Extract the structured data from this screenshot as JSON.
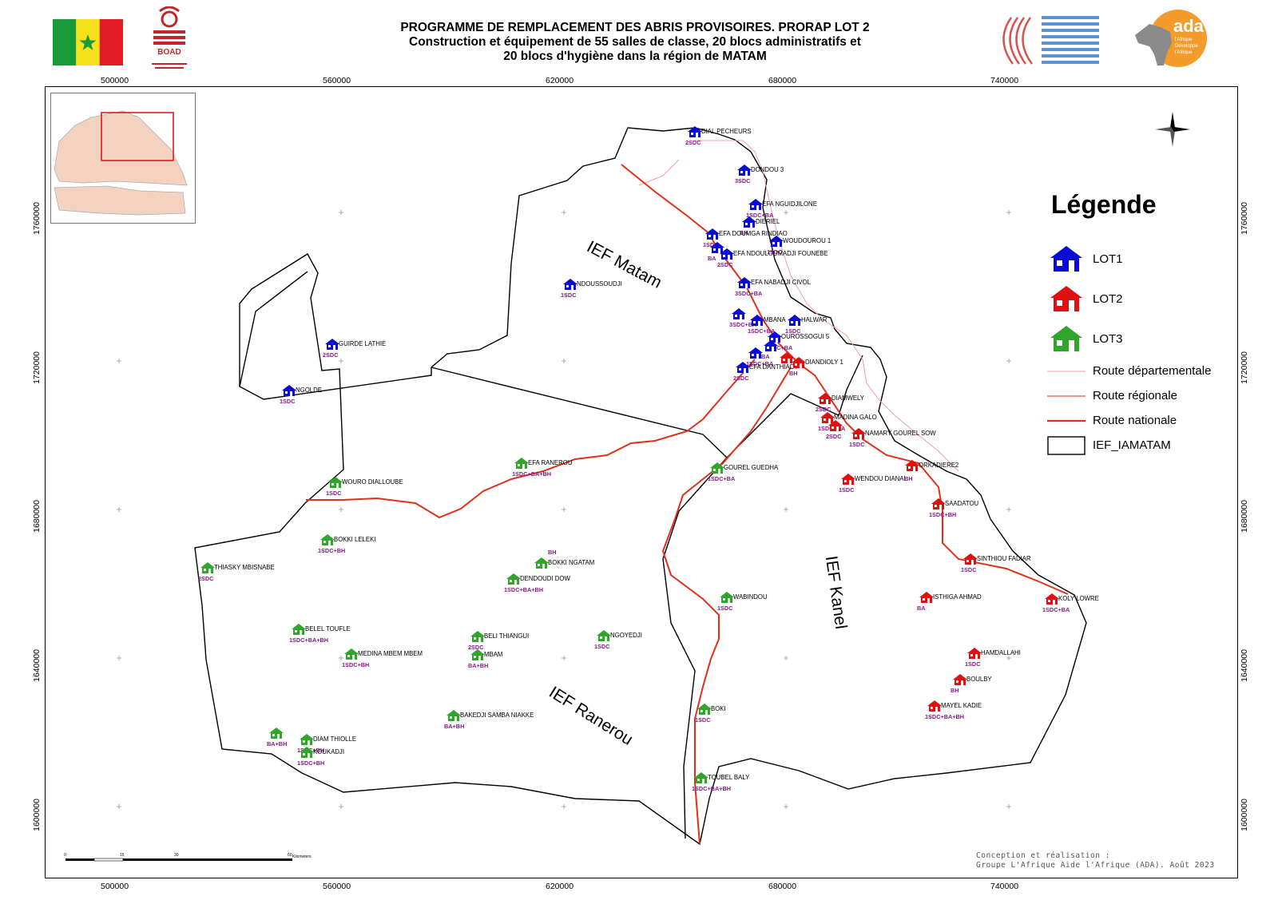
{
  "header": {
    "title_line1": "PROGRAMME DE REMPLACEMENT DES ABRIS PROVISOIRES. PRORAP LOT 2",
    "title_line2": "Construction et équipement de 55 salles de classe, 20 blocs administratifs et",
    "title_line3": "20 blocs d'hygiène dans la région de MATAM",
    "boad_logo_text": "BOAD",
    "ada_logo_text": "ada",
    "ada_logo_sub": "l'Afrique Développe l'Afrique"
  },
  "coords": {
    "x_labels": [
      "500000",
      "560000",
      "620000",
      "680000",
      "740000"
    ],
    "y_labels": [
      "1760000",
      "1720000",
      "1680000",
      "1640000",
      "1600000"
    ]
  },
  "regions": {
    "matam": "IEF Matam",
    "kanel": "IEF Kanel",
    "ranerou": "IEF Ranerou"
  },
  "legend": {
    "title": "Légende",
    "lot1": "LOT1",
    "lot2": "LOT2",
    "lot3": "LOT3",
    "route_dep": "Route départementale",
    "route_reg": "Route régionale",
    "route_nat": "Route nationale",
    "ief": "IEF_IAMATAM",
    "colors": {
      "lot1": "#0a0ad8",
      "lot2": "#e01010",
      "lot3": "#2fa52a",
      "route_dep": "#f0a0a0",
      "route_reg": "#e87060",
      "route_nat": "#e0301a"
    }
  },
  "sites": [
    {
      "name": "DIAL PECHEURS",
      "code": "2SDC",
      "lot": 1
    },
    {
      "name": "DONDOU 3",
      "code": "3SDC",
      "lot": 1
    },
    {
      "name": "EFA NGUIDJILONE",
      "code": "1SDC+BA",
      "lot": 1
    },
    {
      "name": "DIERIEL",
      "code": "BH",
      "lot": 1
    },
    {
      "name": "EFA DOUMGA RINDIAO",
      "code": "1SDC",
      "lot": 1
    },
    {
      "name": "WOUDOUROU 1",
      "code": "1SDC",
      "lot": 1
    },
    {
      "name": "EFA NDOULOUMADJI FOUNEBE",
      "code": "2SDC",
      "lot": 1
    },
    {
      "name": "",
      "code": "BA",
      "lot": 1
    },
    {
      "name": "NDOUSSOUDJI",
      "code": "1SDC",
      "lot": 1
    },
    {
      "name": "EFA NABADJI CIVOL",
      "code": "3SDC+BA",
      "lot": 1
    },
    {
      "name": "",
      "code": "3SDC+BA",
      "lot": 1
    },
    {
      "name": "MBANA",
      "code": "1SDC+BA",
      "lot": 1
    },
    {
      "name": "HALWAR",
      "code": "1SDC",
      "lot": 1
    },
    {
      "name": "OUROSSOGUI 5",
      "code": "1SDC+BA",
      "lot": 1
    },
    {
      "name": "",
      "code": "1SDC+BA",
      "lot": 1
    },
    {
      "name": "EFA DANTHIADY",
      "code": "2SDC",
      "lot": 1
    },
    {
      "name": "GUIRDE LATHIE",
      "code": "2SDC",
      "lot": 1
    },
    {
      "name": "NGOLDE",
      "code": "1SDC",
      "lot": 1
    },
    {
      "name": "",
      "code": "BA",
      "lot": 1
    },
    {
      "name": "DIANDIOLY 1",
      "code": "BH",
      "lot": 2
    },
    {
      "name": "",
      "code": "",
      "lot": 2
    },
    {
      "name": "DIAMWELY",
      "code": "2SDC",
      "lot": 2
    },
    {
      "name": "MADINA GALO",
      "code": "1SDC+BA",
      "lot": 2
    },
    {
      "name": "",
      "code": "2SDC",
      "lot": 2
    },
    {
      "name": "NAMARY GOUREL SOW",
      "code": "1SDC",
      "lot": 2
    },
    {
      "name": "ORKADIERE2",
      "code": "",
      "lot": 2
    },
    {
      "name": "WENDOU DIANAL",
      "code": "1SDC",
      "lot": 2,
      "extra": "BH"
    },
    {
      "name": "SAADATOU",
      "code": "1SDC+BH",
      "lot": 2
    },
    {
      "name": "SINTHIOU FADIAR",
      "code": "1SDC",
      "lot": 2
    },
    {
      "name": "ISTHIGA AHMAD",
      "code": "BA",
      "lot": 2
    },
    {
      "name": "KOLY LOWRE",
      "code": "1SDC+BA",
      "lot": 2
    },
    {
      "name": "HAMDALLAHI",
      "code": "1SDC",
      "lot": 2
    },
    {
      "name": "BOULBY",
      "code": "BH",
      "lot": 2
    },
    {
      "name": "MAYEL KADIE",
      "code": "1SDC+BA+BH",
      "lot": 2
    },
    {
      "name": "EFA RANEROU",
      "code": "1SDC+BA+BH",
      "lot": 3
    },
    {
      "name": "WOURO DIALLOUBE",
      "code": "1SDC",
      "lot": 3
    },
    {
      "name": "GOUREL GUEDHA",
      "code": "1SDC+BA",
      "lot": 3
    },
    {
      "name": "BOKKI LELEKI",
      "code": "1SDC+BH",
      "lot": 3
    },
    {
      "name": "THIASKY MBISNABE",
      "code": "2SDC",
      "lot": 3
    },
    {
      "name": "BOKKI NGATAM",
      "code": "",
      "lot": 3,
      "extra": "BH"
    },
    {
      "name": "DENDOUDI DOW",
      "code": "1SDC+BA+BH",
      "lot": 3
    },
    {
      "name": "WABINDOU",
      "code": "1SDC",
      "lot": 3
    },
    {
      "name": "BELEL TOUFLE",
      "code": "1SDC+BA+BH",
      "lot": 3
    },
    {
      "name": "BELI THIANGUI",
      "code": "2SDC",
      "lot": 3
    },
    {
      "name": "MBAM",
      "code": "BA+BH",
      "lot": 3
    },
    {
      "name": "NGOYEDJI",
      "code": "1SDC",
      "lot": 3
    },
    {
      "name": "MEDINA MBEM MBEM",
      "code": "1SDC+BH",
      "lot": 3
    },
    {
      "name": "BOKI",
      "code": "1SDC",
      "lot": 3
    },
    {
      "name": "BAKEDJI SAMBA NIAKKE",
      "code": "BA+BH",
      "lot": 3
    },
    {
      "name": "",
      "code": "BA+BH",
      "lot": 3
    },
    {
      "name": "DIAM THIOLLE",
      "code": "1SDC+BH",
      "lot": 3
    },
    {
      "name": "KOUKADJI",
      "code": "1SDC+BH",
      "lot": 3
    },
    {
      "name": "TOUBEL BALY",
      "code": "1SDC+BA+BH",
      "lot": 3
    }
  ],
  "scale": {
    "ticks": [
      "0",
      "15",
      "30",
      "60"
    ],
    "unit": "Kilometers"
  },
  "credit": {
    "line1": "Conception et réalisation :",
    "line2": "Groupe L'Afrique Aide l'Afrique (ADA). Août 2023"
  }
}
